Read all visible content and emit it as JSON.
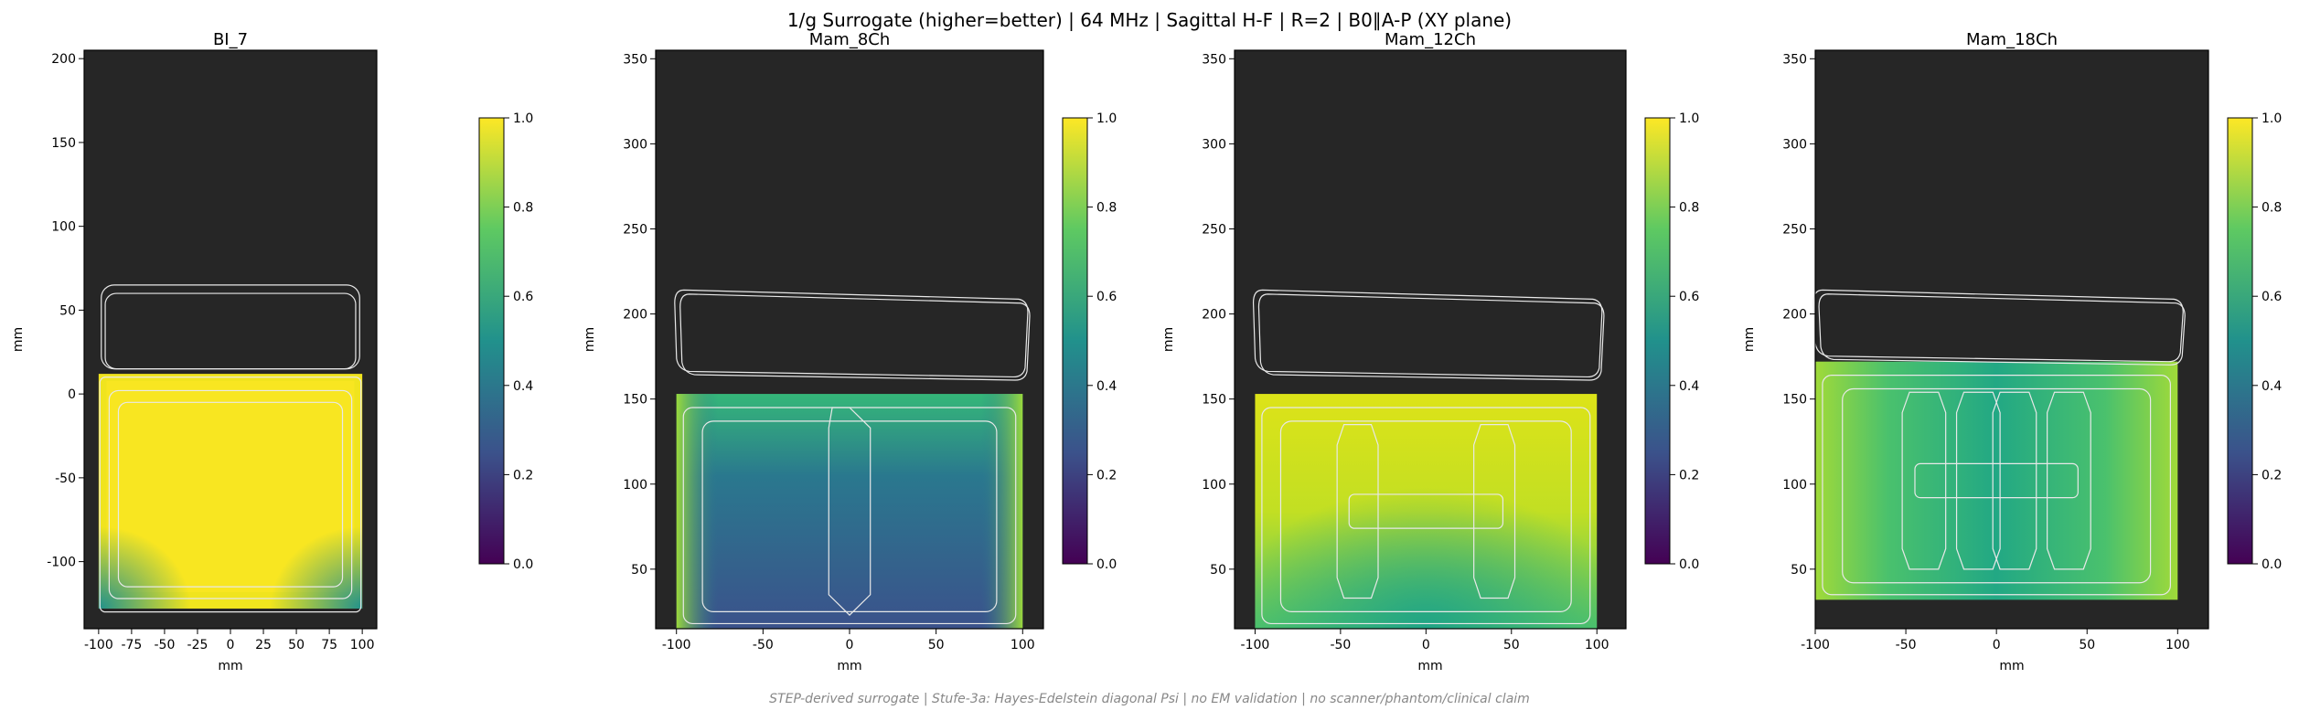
{
  "figure": {
    "suptitle": "1/g Surrogate (higher=better) | 64 MHz | Sagittal H-F | R=2 | B0∥A-P (XY plane)",
    "footnote": "STEP-derived surrogate | Stufe-3a: Hayes-Edelstein diagonal Psi | no EM validation | no scanner/phantom/clinical claim"
  },
  "colors": {
    "background_dark": "#262626",
    "coil_outline": "#e8e8e8",
    "viridis": [
      "#440154",
      "#3b528b",
      "#21918c",
      "#5ec962",
      "#fde725"
    ]
  },
  "chart_data": [
    {
      "type": "heatmap",
      "title": "BI_7",
      "xlabel": "mm",
      "ylabel": "mm",
      "xlim": [
        -111,
        111
      ],
      "ylim": [
        -140,
        205
      ],
      "xticks": [
        -100,
        -75,
        -50,
        -25,
        0,
        25,
        50,
        75,
        100
      ],
      "yticks": [
        -100,
        -50,
        0,
        50,
        100,
        150,
        200
      ],
      "field_extent": {
        "x": [
          -100,
          100
        ],
        "y": [
          -128,
          12
        ]
      },
      "value_range_approx": [
        0.75,
        0.95
      ],
      "colorbar": {
        "colormap": "viridis",
        "min": 0.0,
        "max": 1.0,
        "ticks": [
          "0.0",
          "0.2",
          "0.4",
          "0.6",
          "0.8",
          "1.0"
        ]
      }
    },
    {
      "type": "heatmap",
      "title": "Mam_8Ch",
      "xlabel": "mm",
      "ylabel": "mm",
      "xlim": [
        -112,
        112
      ],
      "ylim": [
        15,
        355
      ],
      "xticks": [
        -100,
        -50,
        0,
        50,
        100
      ],
      "yticks": [
        50,
        100,
        150,
        200,
        250,
        300,
        350
      ],
      "field_extent": {
        "x": [
          -100,
          100
        ],
        "y": [
          15,
          153
        ]
      },
      "value_range_approx": [
        0.2,
        0.9
      ],
      "colorbar": {
        "colormap": "viridis",
        "min": 0.0,
        "max": 1.0,
        "ticks": [
          "0.0",
          "0.2",
          "0.4",
          "0.6",
          "0.8",
          "1.0"
        ]
      }
    },
    {
      "type": "heatmap",
      "title": "Mam_12Ch",
      "xlabel": "mm",
      "ylabel": "mm",
      "xlim": [
        -112,
        117
      ],
      "ylim": [
        15,
        355
      ],
      "xticks": [
        -100,
        -50,
        0,
        50,
        100
      ],
      "yticks": [
        50,
        100,
        150,
        200,
        250,
        300,
        350
      ],
      "field_extent": {
        "x": [
          -100,
          100
        ],
        "y": [
          15,
          153
        ]
      },
      "value_range_approx": [
        0.55,
        0.95
      ],
      "colorbar": {
        "colormap": "viridis",
        "min": 0.0,
        "max": 1.0,
        "ticks": [
          "0.0",
          "0.2",
          "0.4",
          "0.6",
          "0.8",
          "1.0"
        ]
      }
    },
    {
      "type": "heatmap",
      "title": "Mam_18Ch",
      "xlabel": "mm",
      "ylabel": "mm",
      "xlim": [
        -100,
        117
      ],
      "ylim": [
        15,
        355
      ],
      "xticks": [
        -100,
        -50,
        0,
        50,
        100
      ],
      "yticks": [
        50,
        100,
        150,
        200,
        250,
        300,
        350
      ],
      "field_extent": {
        "x": [
          -100,
          100
        ],
        "y": [
          32,
          172
        ]
      },
      "value_range_approx": [
        0.5,
        0.9
      ],
      "colorbar": {
        "colormap": "viridis",
        "min": 0.0,
        "max": 1.0,
        "ticks": [
          "0.0",
          "0.2",
          "0.4",
          "0.6",
          "0.8",
          "1.0"
        ]
      }
    }
  ]
}
